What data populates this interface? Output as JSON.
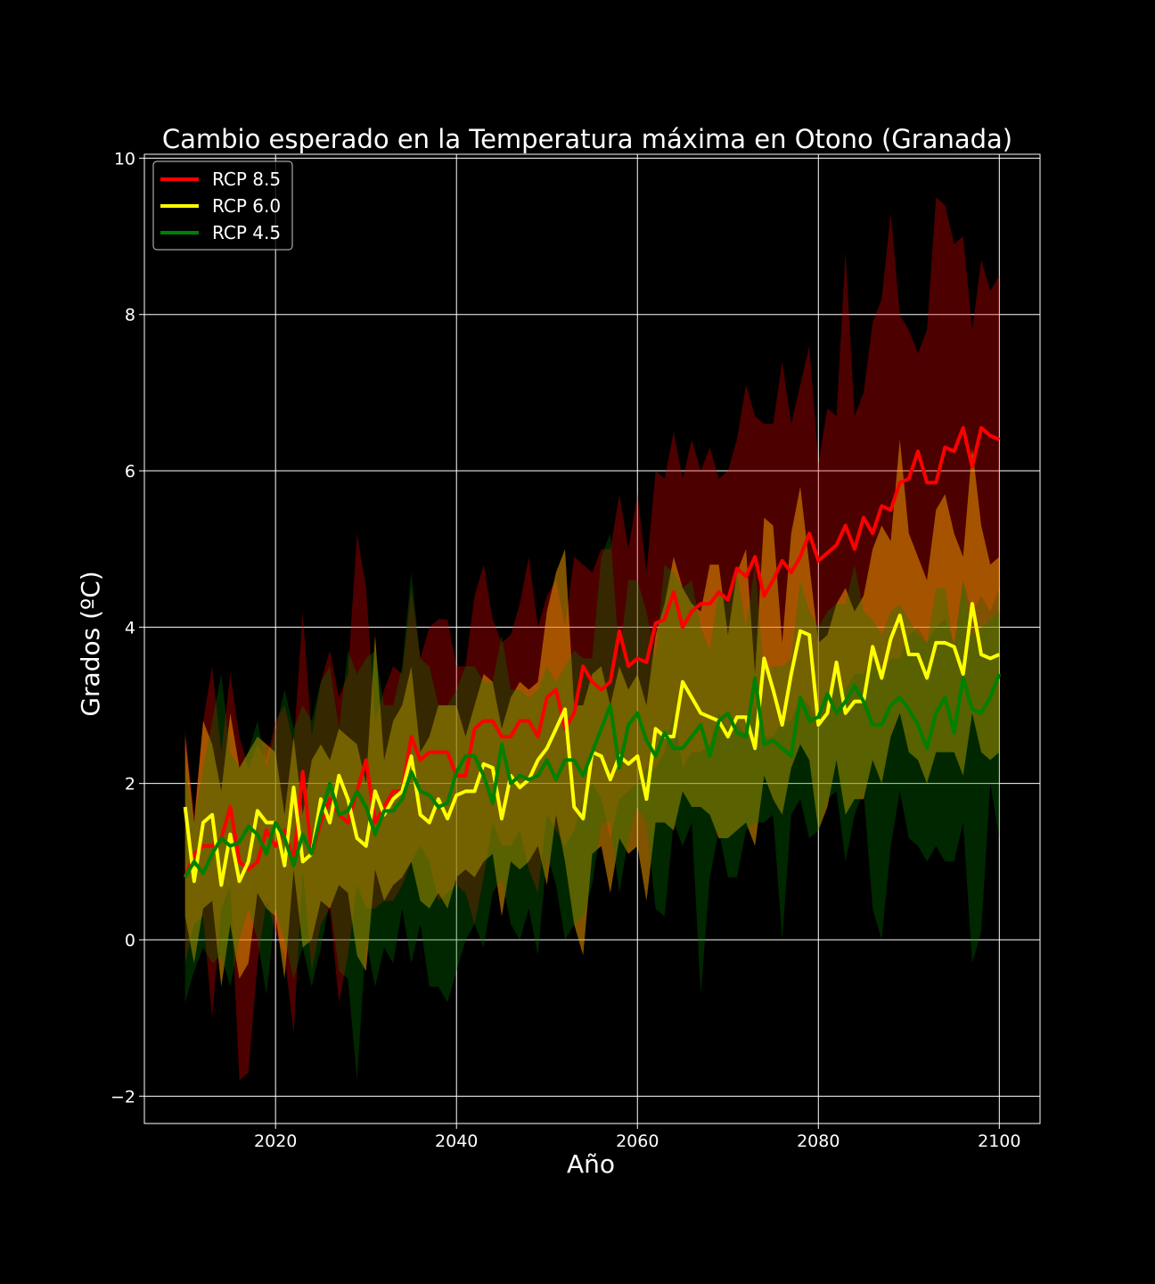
{
  "chart_data": {
    "type": "line",
    "title": "Cambio esperado en la Temperatura máxima en Otono (Granada)",
    "xlabel": "Año",
    "ylabel": "Grados (ºC)",
    "xlim": [
      2005.5,
      2104.5
    ],
    "ylim": [
      -2.35,
      10.05
    ],
    "xticks": [
      2020,
      2040,
      2060,
      2080,
      2100
    ],
    "yticks": [
      -2,
      0,
      2,
      4,
      6,
      8,
      10
    ],
    "ytick_labels": [
      "−2",
      "0",
      "2",
      "4",
      "6",
      "8",
      "10"
    ],
    "grid": true,
    "legend_position": "top-left",
    "background": "#000000",
    "series": [
      {
        "name": "RCP 8.5",
        "color": "#ff0000",
        "band_color": "#ff0000",
        "band_opacity": 0.3,
        "x_start": 2010,
        "mean": [
          0.8,
          1.1,
          1.2,
          1.2,
          1.3,
          1.7,
          1.0,
          0.9,
          1.0,
          1.4,
          1.2,
          1.4,
          1.0,
          2.15,
          1.1,
          1.5,
          1.8,
          1.6,
          1.5,
          1.9,
          2.3,
          1.5,
          1.7,
          1.9,
          1.9,
          2.6,
          2.3,
          2.4,
          2.4,
          2.4,
          2.1,
          2.1,
          2.7,
          2.8,
          2.8,
          2.6,
          2.6,
          2.8,
          2.8,
          2.6,
          3.1,
          3.2,
          2.7,
          2.9,
          3.5,
          3.3,
          3.2,
          3.3,
          3.95,
          3.5,
          3.6,
          3.55,
          4.05,
          4.1,
          4.45,
          4.0,
          4.2,
          4.3,
          4.3,
          4.45,
          4.35,
          4.75,
          4.65,
          4.9,
          4.4,
          4.6,
          4.85,
          4.7,
          4.9,
          5.2,
          4.85,
          4.95,
          5.05,
          5.3,
          5.0,
          5.4,
          5.2,
          5.55,
          5.5,
          5.85,
          5.9,
          6.25,
          5.85,
          5.85,
          6.3,
          6.25,
          6.55,
          6.05,
          6.55,
          6.45,
          6.4
        ],
        "upper": [
          2.7,
          1.6,
          2.8,
          3.5,
          2.4,
          3.4,
          2.6,
          2.2,
          2.5,
          2.3,
          2.8,
          3.0,
          2.5,
          4.2,
          2.6,
          3.3,
          3.7,
          3.1,
          3.4,
          5.2,
          4.5,
          2.8,
          3.2,
          3.5,
          3.4,
          4.5,
          3.6,
          4.0,
          4.1,
          4.1,
          3.5,
          3.5,
          4.4,
          4.8,
          4.1,
          3.8,
          3.9,
          4.3,
          4.9,
          4.0,
          4.4,
          4.6,
          4.0,
          4.9,
          4.8,
          4.7,
          5.0,
          5.0,
          5.7,
          5.0,
          5.7,
          4.7,
          6.0,
          5.9,
          6.5,
          5.9,
          6.4,
          6.0,
          6.3,
          5.9,
          6.0,
          6.4,
          7.1,
          6.7,
          6.6,
          6.6,
          7.4,
          6.6,
          7.1,
          7.6,
          6.1,
          6.8,
          6.7,
          8.8,
          6.7,
          7.0,
          7.9,
          8.2,
          9.3,
          8.0,
          7.8,
          7.5,
          7.8,
          9.5,
          9.4,
          8.9,
          9.0,
          7.8,
          8.7,
          8.3,
          8.5
        ],
        "lower": [
          -0.3,
          0.2,
          0.3,
          -1.0,
          0.4,
          0.7,
          -1.8,
          -1.7,
          -0.3,
          0.5,
          0.1,
          -0.2,
          -1.2,
          0.9,
          -0.4,
          0.2,
          0.4,
          -0.8,
          -0.2,
          0.7,
          0.4,
          0.4,
          0.5,
          0.5,
          0.7,
          1.0,
          1.2,
          1.0,
          0.5,
          0.6,
          0.7,
          0.6,
          0.2,
          0.8,
          1.5,
          1.2,
          1.2,
          1.4,
          0.9,
          0.6,
          1.6,
          1.4,
          1.2,
          1.4,
          1.8,
          2.0,
          1.8,
          1.3,
          1.8,
          1.9,
          2.0,
          2.2,
          2.2,
          2.4,
          2.9,
          2.2,
          2.4,
          2.4,
          2.5,
          2.9,
          2.7,
          2.8,
          2.6,
          3.0,
          2.6,
          2.6,
          2.8,
          2.8,
          3.1,
          3.0,
          2.7,
          3.1,
          3.4,
          3.2,
          3.4,
          3.4,
          3.6,
          3.3,
          3.6,
          3.6,
          3.9,
          4.0,
          3.8,
          4.0,
          4.1,
          3.8,
          4.6,
          4.2,
          4.4,
          4.2,
          4.5
        ]
      },
      {
        "name": "RCP 6.0",
        "color": "#ffff00",
        "band_color": "#ffa500",
        "band_opacity": 0.5,
        "x_start": 2010,
        "mean": [
          1.7,
          0.75,
          1.5,
          1.6,
          0.7,
          1.35,
          0.75,
          1.0,
          1.65,
          1.5,
          1.5,
          0.95,
          1.95,
          1.0,
          1.1,
          1.8,
          1.5,
          2.1,
          1.8,
          1.3,
          1.2,
          1.9,
          1.6,
          1.8,
          1.9,
          2.35,
          1.6,
          1.5,
          1.8,
          1.55,
          1.85,
          1.9,
          1.9,
          2.25,
          2.2,
          1.55,
          2.1,
          1.95,
          2.05,
          2.3,
          2.45,
          2.7,
          2.95,
          1.7,
          1.55,
          2.4,
          2.35,
          2.05,
          2.35,
          2.25,
          2.35,
          1.8,
          2.7,
          2.6,
          2.6,
          3.3,
          3.1,
          2.9,
          2.85,
          2.8,
          2.6,
          2.85,
          2.85,
          2.45,
          3.6,
          3.2,
          2.75,
          3.4,
          3.95,
          3.9,
          2.75,
          2.9,
          3.55,
          2.9,
          3.05,
          3.05,
          3.75,
          3.35,
          3.85,
          4.15,
          3.65,
          3.65,
          3.35,
          3.8,
          3.8,
          3.75,
          3.4,
          4.3,
          3.65,
          3.6,
          3.65
        ],
        "upper": [
          2.6,
          1.5,
          2.8,
          2.5,
          1.9,
          2.9,
          2.2,
          2.4,
          2.6,
          2.5,
          2.4,
          1.6,
          2.6,
          1.6,
          2.3,
          2.5,
          2.3,
          2.7,
          2.6,
          2.5,
          2.0,
          3.9,
          2.3,
          2.8,
          3.0,
          3.5,
          2.4,
          2.6,
          3.0,
          3.0,
          3.0,
          2.6,
          3.0,
          3.4,
          3.3,
          2.7,
          3.1,
          3.3,
          3.2,
          3.3,
          4.2,
          4.7,
          5.0,
          3.0,
          3.0,
          3.4,
          3.5,
          3.0,
          3.5,
          3.2,
          3.4,
          3.0,
          3.9,
          4.3,
          4.9,
          4.5,
          4.3,
          4.2,
          4.8,
          4.8,
          3.9,
          4.7,
          5.0,
          3.4,
          5.4,
          5.3,
          3.8,
          5.2,
          5.8,
          4.8,
          3.8,
          3.9,
          4.3,
          4.5,
          4.2,
          4.4,
          5.0,
          5.3,
          5.1,
          6.4,
          5.2,
          4.9,
          4.6,
          5.5,
          5.7,
          5.2,
          4.9,
          6.3,
          5.3,
          4.8,
          4.9
        ],
        "lower": [
          0.3,
          -0.3,
          0.4,
          0.5,
          -0.6,
          0.2,
          -0.5,
          -0.3,
          0.6,
          0.4,
          0.3,
          -0.5,
          0.9,
          -0.1,
          0.0,
          0.5,
          0.4,
          0.7,
          0.6,
          -0.2,
          -0.4,
          0.9,
          0.5,
          0.7,
          0.8,
          1.0,
          0.5,
          0.4,
          0.6,
          0.4,
          0.8,
          0.9,
          0.8,
          1.0,
          1.1,
          0.3,
          1.0,
          0.9,
          1.0,
          1.2,
          0.7,
          1.6,
          1.0,
          0.2,
          -0.2,
          1.1,
          1.2,
          0.6,
          1.3,
          1.1,
          1.2,
          0.5,
          1.5,
          1.5,
          1.4,
          1.9,
          1.7,
          1.7,
          1.6,
          1.3,
          1.3,
          1.4,
          1.5,
          1.2,
          2.1,
          1.8,
          1.6,
          2.2,
          2.5,
          2.3,
          1.4,
          1.7,
          2.3,
          1.6,
          1.8,
          1.8,
          2.3,
          2.0,
          2.6,
          2.9,
          2.4,
          2.3,
          2.0,
          2.4,
          2.4,
          2.4,
          2.1,
          2.9,
          2.4,
          2.3,
          2.4
        ]
      },
      {
        "name": "RCP 4.5",
        "color": "#008000",
        "band_color": "#008000",
        "band_opacity": 0.3,
        "x_start": 2010,
        "mean": [
          0.8,
          1.0,
          0.85,
          1.1,
          1.3,
          1.2,
          1.25,
          1.45,
          1.35,
          1.1,
          1.5,
          1.3,
          0.95,
          1.35,
          1.1,
          1.6,
          2.0,
          1.6,
          1.65,
          1.9,
          1.7,
          1.35,
          1.65,
          1.65,
          1.8,
          2.15,
          1.9,
          1.85,
          1.7,
          1.75,
          2.15,
          2.35,
          2.35,
          2.1,
          1.75,
          2.5,
          2.0,
          2.1,
          2.05,
          2.1,
          2.3,
          2.05,
          2.3,
          2.3,
          2.1,
          2.4,
          2.7,
          3.0,
          2.2,
          2.75,
          2.9,
          2.55,
          2.35,
          2.65,
          2.45,
          2.45,
          2.6,
          2.75,
          2.35,
          2.8,
          2.9,
          2.65,
          2.6,
          3.35,
          2.5,
          2.55,
          2.45,
          2.35,
          3.1,
          2.8,
          2.85,
          3.15,
          2.9,
          3.05,
          3.25,
          3.05,
          2.75,
          2.75,
          3.0,
          3.1,
          2.95,
          2.75,
          2.45,
          2.9,
          3.1,
          2.65,
          3.35,
          2.95,
          2.9,
          3.1,
          3.4
        ],
        "upper": [
          2.2,
          1.5,
          2.2,
          2.8,
          3.4,
          2.4,
          2.2,
          2.4,
          2.8,
          2.2,
          2.7,
          3.2,
          2.7,
          3.0,
          2.8,
          3.3,
          3.5,
          2.7,
          3.7,
          3.4,
          3.6,
          3.7,
          3.0,
          3.0,
          3.5,
          4.7,
          3.6,
          3.5,
          3.0,
          3.0,
          3.2,
          3.5,
          3.5,
          3.3,
          3.3,
          3.9,
          3.2,
          3.2,
          3.1,
          3.2,
          3.5,
          3.3,
          3.5,
          3.7,
          3.6,
          3.6,
          4.9,
          5.2,
          3.6,
          4.6,
          4.6,
          4.2,
          3.6,
          4.8,
          4.7,
          4.5,
          4.6,
          4.0,
          3.7,
          4.5,
          4.3,
          4.7,
          4.0,
          4.8,
          3.4,
          3.5,
          3.5,
          3.6,
          4.6,
          4.2,
          4.0,
          4.2,
          4.3,
          4.3,
          4.8,
          4.2,
          4.1,
          3.9,
          4.2,
          4.3,
          4.1,
          3.9,
          3.8,
          4.5,
          4.5,
          3.7,
          4.6,
          3.9,
          4.0,
          4.1,
          4.2
        ],
        "lower": [
          -0.8,
          -0.4,
          -0.1,
          -0.3,
          -0.2,
          -0.6,
          0.0,
          0.4,
          0.0,
          -0.7,
          0.4,
          0.0,
          -0.5,
          -0.1,
          -0.6,
          -0.1,
          0.5,
          -0.4,
          -0.5,
          -1.8,
          0.0,
          -0.6,
          -0.1,
          -0.3,
          0.4,
          -0.3,
          0.2,
          -0.6,
          -0.6,
          -0.8,
          -0.4,
          0.0,
          0.2,
          -0.1,
          0.6,
          0.8,
          0.2,
          0.0,
          0.4,
          -0.2,
          1.1,
          0.7,
          0.0,
          0.2,
          0.3,
          0.7,
          1.5,
          1.5,
          0.6,
          1.3,
          1.7,
          1.5,
          0.4,
          0.3,
          1.5,
          1.2,
          1.5,
          -0.7,
          0.8,
          1.4,
          0.8,
          0.8,
          1.4,
          1.5,
          1.5,
          1.6,
          0.0,
          1.6,
          1.8,
          1.3,
          1.4,
          1.8,
          1.9,
          1.0,
          1.6,
          1.9,
          0.4,
          0.0,
          1.2,
          1.9,
          1.3,
          1.2,
          1.0,
          1.2,
          1.0,
          1.0,
          1.5,
          -0.3,
          0.1,
          2.0,
          1.3
        ]
      }
    ]
  }
}
